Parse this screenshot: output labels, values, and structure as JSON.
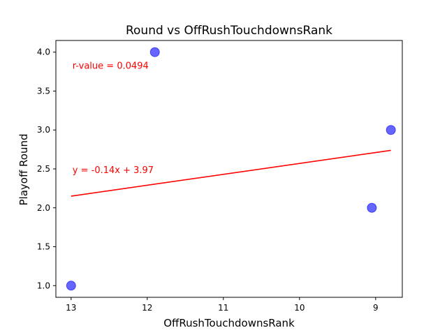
{
  "chart_data": {
    "type": "scatter",
    "title": "Round vs OffRushTouchdownsRank",
    "xlabel": "OffRushTouchdownsRank",
    "ylabel": "Playoff Round",
    "x_inverted": true,
    "xlim": [
      13.2,
      8.65
    ],
    "ylim": [
      0.85,
      4.15
    ],
    "x_ticks": [
      13,
      12,
      11,
      10,
      9
    ],
    "x_tick_labels": [
      "13",
      "12",
      "11",
      "10",
      "9"
    ],
    "y_ticks": [
      1.0,
      1.5,
      2.0,
      2.5,
      3.0,
      3.5,
      4.0
    ],
    "y_tick_labels": [
      "1.0",
      "1.5",
      "2.0",
      "2.5",
      "3.0",
      "3.5",
      "4.0"
    ],
    "grid": false,
    "points": [
      {
        "x": 13.0,
        "y": 1.0
      },
      {
        "x": 11.9,
        "y": 4.0
      },
      {
        "x": 9.05,
        "y": 2.0
      },
      {
        "x": 8.8,
        "y": 3.0
      }
    ],
    "regression": {
      "slope": -0.14,
      "intercept": 3.97,
      "x_range": [
        13.0,
        8.8
      ]
    },
    "annotations": [
      {
        "text": "r-value = 0.0494",
        "x": 13.0,
        "y": 3.83
      },
      {
        "text": "y = -0.14x + 3.97",
        "x": 13.0,
        "y": 2.49
      }
    ],
    "colors": {
      "points": "#0000ff",
      "line": "#ff0000",
      "annotation": "#ff0000"
    }
  }
}
